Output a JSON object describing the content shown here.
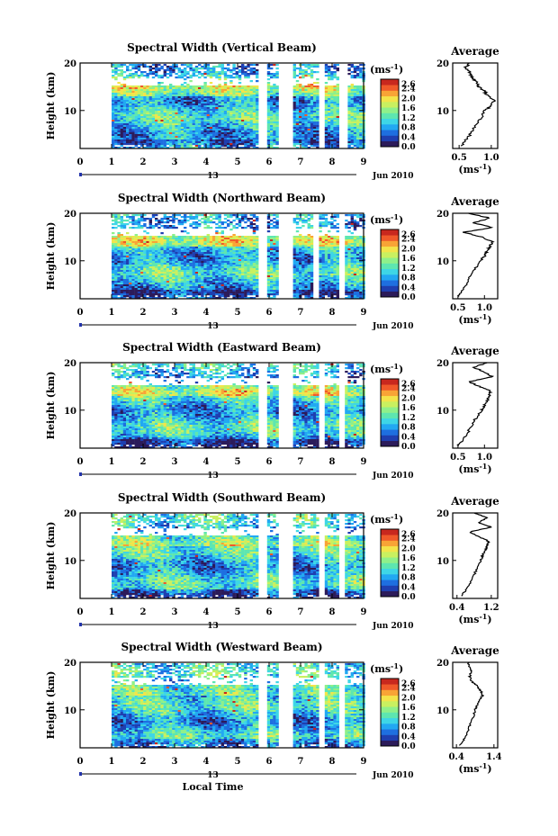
{
  "figure": {
    "xlabel": "Local Time",
    "date_day": "13",
    "date_month": "Jun 2010",
    "ylabel": "Height (km)",
    "colorbar_unit": "(ms",
    "unit_sup": "-1",
    "unit_close": ")",
    "avg_unit": "(ms",
    "avg_title": "Average"
  },
  "colors": {
    "colormap": [
      "#2c1b5a",
      "#1f3fb0",
      "#1e6fe0",
      "#22a8f2",
      "#3ed6e6",
      "#5ee6b0",
      "#8ff08a",
      "#c9f060",
      "#f3e44a",
      "#f8a436",
      "#f05a2a",
      "#c8281e"
    ]
  },
  "chart_data": [
    {
      "type": "heatmap",
      "title": "Spectral Width (Vertical Beam)",
      "x_ticks": [
        "0",
        "1",
        "2",
        "3",
        "4",
        "5",
        "6",
        "7",
        "8",
        "9"
      ],
      "y_ticks": [
        "10",
        "20"
      ],
      "xlim": [
        0,
        9
      ],
      "ylim": [
        2,
        20
      ],
      "data_start": 1.0,
      "gaps": [
        [
          5.65,
          5.92
        ],
        [
          6.3,
          6.72
        ],
        [
          7.55,
          7.75
        ],
        [
          8.15,
          8.45
        ]
      ],
      "colorbar_ticks": [
        "2.6",
        "2.4",
        "2.0",
        "1.6",
        "1.2",
        "0.8",
        "0.4",
        "0.0"
      ],
      "colorbar_range": [
        0,
        2.8
      ],
      "avg_profile": {
        "x_ticks": [
          "0.5",
          "1.0"
        ],
        "xlim": [
          0.4,
          1.1
        ],
        "ylim": [
          2,
          20
        ],
        "heights": [
          2.5,
          4,
          6,
          8,
          10,
          11,
          12,
          13,
          14,
          15,
          16,
          17,
          18,
          19,
          20
        ],
        "values": [
          0.52,
          0.62,
          0.72,
          0.82,
          0.9,
          1.0,
          1.05,
          0.95,
          0.9,
          0.8,
          0.78,
          0.7,
          0.66,
          0.6,
          0.66
        ]
      }
    },
    {
      "type": "heatmap",
      "title": "Spectral Width (Northward Beam)",
      "x_ticks": [
        "0",
        "1",
        "2",
        "3",
        "4",
        "5",
        "6",
        "7",
        "8",
        "9"
      ],
      "y_ticks": [
        "10",
        "20"
      ],
      "xlim": [
        0,
        9
      ],
      "ylim": [
        2,
        20
      ],
      "data_start": 1.0,
      "gaps": [
        [
          5.65,
          5.92
        ],
        [
          6.3,
          6.72
        ],
        [
          7.35,
          7.55
        ],
        [
          8.15,
          8.35
        ]
      ],
      "colorbar_ticks": [
        "2.6",
        "2.4",
        "2.0",
        "1.6",
        "1.2",
        "0.8",
        "0.4",
        "0.0"
      ],
      "colorbar_range": [
        0,
        2.8
      ],
      "avg_profile": {
        "x_ticks": [
          "0.5",
          "1.0"
        ],
        "xlim": [
          0.4,
          1.25
        ],
        "ylim": [
          2,
          20
        ],
        "heights": [
          2.5,
          4,
          6,
          8,
          10,
          11,
          12,
          13,
          14,
          15,
          16,
          17,
          18,
          19,
          20
        ],
        "values": [
          0.5,
          0.6,
          0.7,
          0.8,
          0.92,
          1.0,
          1.05,
          1.1,
          1.15,
          0.95,
          0.6,
          1.15,
          0.8,
          1.1,
          0.7
        ]
      }
    },
    {
      "type": "heatmap",
      "title": "Spectral Width (Eastward Beam)",
      "x_ticks": [
        "0",
        "1",
        "2",
        "3",
        "4",
        "5",
        "6",
        "7",
        "8",
        "9"
      ],
      "y_ticks": [
        "10",
        "20"
      ],
      "xlim": [
        0,
        9
      ],
      "ylim": [
        2,
        20
      ],
      "data_start": 1.0,
      "gaps": [
        [
          5.65,
          5.92
        ],
        [
          6.3,
          6.72
        ],
        [
          7.55,
          7.75
        ],
        [
          8.15,
          8.35
        ]
      ],
      "colorbar_ticks": [
        "2.6",
        "2.4",
        "2.0",
        "1.6",
        "1.2",
        "0.8",
        "0.4",
        "0.0"
      ],
      "colorbar_range": [
        0,
        2.8
      ],
      "avg_profile": {
        "x_ticks": [
          "0.5",
          "1.0"
        ],
        "xlim": [
          0.4,
          1.25
        ],
        "ylim": [
          2,
          20
        ],
        "heights": [
          2.5,
          4,
          6,
          8,
          10,
          11,
          12,
          13,
          14,
          15,
          16,
          17,
          18,
          19,
          20
        ],
        "values": [
          0.5,
          0.62,
          0.72,
          0.82,
          0.95,
          1.0,
          1.05,
          1.1,
          1.12,
          0.9,
          0.7,
          1.15,
          1.0,
          0.8,
          1.05
        ]
      }
    },
    {
      "type": "heatmap",
      "title": "Spectral Width (Southward Beam)",
      "x_ticks": [
        "0",
        "1",
        "2",
        "3",
        "4",
        "5",
        "6",
        "7",
        "8",
        "9"
      ],
      "y_ticks": [
        "10",
        "20"
      ],
      "xlim": [
        0,
        9
      ],
      "ylim": [
        2,
        20
      ],
      "data_start": 1.0,
      "gaps": [
        [
          5.65,
          5.92
        ],
        [
          6.3,
          6.72
        ],
        [
          7.55,
          7.75
        ],
        [
          8.15,
          8.35
        ]
      ],
      "colorbar_ticks": [
        "2.6",
        "2.4",
        "2.0",
        "1.6",
        "1.2",
        "0.8",
        "0.4",
        "0.0"
      ],
      "colorbar_range": [
        0,
        2.8
      ],
      "avg_profile": {
        "x_ticks": [
          "0.4",
          "1.2"
        ],
        "xlim": [
          0.3,
          1.35
        ],
        "ylim": [
          2,
          20
        ],
        "heights": [
          2.5,
          4,
          6,
          8,
          10,
          11,
          12,
          13,
          14,
          15,
          16,
          17,
          18,
          19,
          20
        ],
        "values": [
          0.5,
          0.62,
          0.75,
          0.85,
          0.95,
          1.0,
          1.05,
          1.1,
          1.15,
          0.9,
          0.7,
          1.2,
          0.9,
          1.1,
          0.8
        ]
      }
    },
    {
      "type": "heatmap",
      "title": "Spectral Width (Westward Beam)",
      "x_ticks": [
        "0",
        "1",
        "2",
        "3",
        "4",
        "5",
        "6",
        "7",
        "8",
        "9"
      ],
      "y_ticks": [
        "10",
        "20"
      ],
      "xlim": [
        0,
        9
      ],
      "ylim": [
        2,
        20
      ],
      "data_start": 1.0,
      "gaps": [
        [
          5.65,
          5.92
        ],
        [
          6.3,
          6.72
        ],
        [
          7.55,
          7.75
        ],
        [
          8.15,
          8.35
        ]
      ],
      "colorbar_ticks": [
        "2.6",
        "2.4",
        "2.0",
        "1.6",
        "1.2",
        "0.8",
        "0.4",
        "0.0"
      ],
      "colorbar_range": [
        0,
        2.8
      ],
      "avg_profile": {
        "x_ticks": [
          "0.4",
          "1.4"
        ],
        "xlim": [
          0.3,
          1.5
        ],
        "ylim": [
          2,
          20
        ],
        "heights": [
          2.5,
          4,
          6,
          8,
          10,
          11,
          12,
          13,
          14,
          15,
          16,
          17,
          18,
          19,
          20
        ],
        "values": [
          0.5,
          0.62,
          0.72,
          0.82,
          0.9,
          0.95,
          1.0,
          1.1,
          1.05,
          0.95,
          0.8,
          0.75,
          0.8,
          0.75,
          0.7
        ]
      }
    }
  ]
}
